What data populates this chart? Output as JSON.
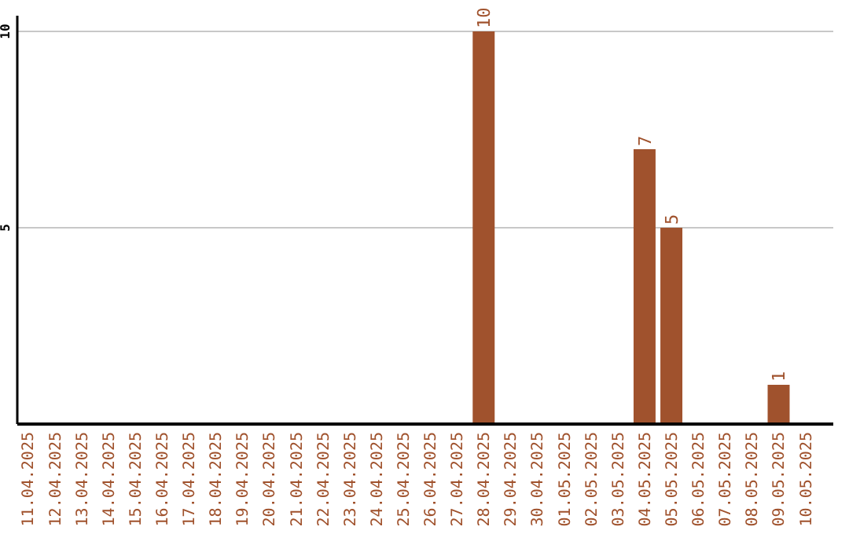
{
  "chart_data": {
    "type": "bar",
    "categories": [
      "11.04.2025",
      "12.04.2025",
      "13.04.2025",
      "14.04.2025",
      "15.04.2025",
      "16.04.2025",
      "17.04.2025",
      "18.04.2025",
      "19.04.2025",
      "20.04.2025",
      "21.04.2025",
      "22.04.2025",
      "23.04.2025",
      "24.04.2025",
      "25.04.2025",
      "26.04.2025",
      "27.04.2025",
      "28.04.2025",
      "29.04.2025",
      "30.04.2025",
      "01.05.2025",
      "02.05.2025",
      "03.05.2025",
      "04.05.2025",
      "05.05.2025",
      "06.05.2025",
      "07.05.2025",
      "08.05.2025",
      "09.05.2025",
      "10.05.2025"
    ],
    "values": [
      0,
      0,
      0,
      0,
      0,
      0,
      0,
      0,
      0,
      0,
      0,
      0,
      0,
      0,
      0,
      0,
      0,
      10,
      0,
      0,
      0,
      0,
      0,
      7,
      5,
      0,
      0,
      0,
      1,
      0
    ],
    "value_labels": [
      null,
      null,
      null,
      null,
      null,
      null,
      null,
      null,
      null,
      null,
      null,
      null,
      null,
      null,
      null,
      null,
      null,
      "10",
      null,
      null,
      null,
      null,
      null,
      "7",
      "5",
      null,
      null,
      null,
      "1",
      null
    ],
    "color": "#a0522d",
    "ylim": [
      0,
      10.4
    ],
    "yticks": [
      5,
      10
    ],
    "grid": "y"
  }
}
